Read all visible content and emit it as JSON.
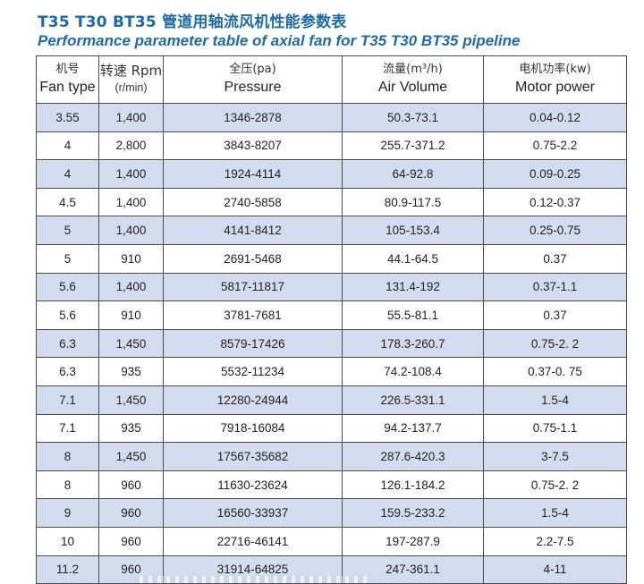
{
  "title_cn": "T35 T30 BT35 管道用轴流风机性能参数表",
  "title_en": "Performance parameter table of axial fan for T35 T30 BT35 pipeline",
  "headers": [
    {
      "cn": "机号",
      "en": "Fan type",
      "sub": ""
    },
    {
      "cn": "转速 Rpm",
      "en": "",
      "sub": "(r/min)"
    },
    {
      "cn": "全压(pa)",
      "en": "Pressure",
      "sub": ""
    },
    {
      "cn": "流量(m³/h)",
      "en": "Air Volume",
      "sub": ""
    },
    {
      "cn": "电机功率(kw)",
      "en": "Motor power",
      "sub": ""
    }
  ],
  "rows": [
    {
      "fan": "3.55",
      "rpm": "1,400",
      "pressure": "1346-2878",
      "volume": "50.3-73.1",
      "power": "0.04-0.12"
    },
    {
      "fan": "4",
      "rpm": "2,800",
      "pressure": "3843-8207",
      "volume": "255.7-371.2",
      "power": "0.75-2.2"
    },
    {
      "fan": "4",
      "rpm": "1,400",
      "pressure": "1924-4114",
      "volume": "64-92.8",
      "power": "0.09-0.25"
    },
    {
      "fan": "4.5",
      "rpm": "1,400",
      "pressure": "2740-5858",
      "volume": "80.9-117.5",
      "power": "0.12-0.37"
    },
    {
      "fan": "5",
      "rpm": "1,400",
      "pressure": "4141-8412",
      "volume": "105-153.4",
      "power": "0.25-0.75"
    },
    {
      "fan": "5",
      "rpm": "910",
      "pressure": "2691-5468",
      "volume": "44.1-64.5",
      "power": "0.37"
    },
    {
      "fan": "5.6",
      "rpm": "1,400",
      "pressure": "5817-11817",
      "volume": "131.4-192",
      "power": "0.37-1.1"
    },
    {
      "fan": "5.6",
      "rpm": "910",
      "pressure": "3781-7681",
      "volume": "55.5-81.1",
      "power": "0.37"
    },
    {
      "fan": "6.3",
      "rpm": "1,450",
      "pressure": "8579-17426",
      "volume": "178.3-260.7",
      "power": "0.75-2. 2"
    },
    {
      "fan": "6.3",
      "rpm": "935",
      "pressure": "5532-11234",
      "volume": "74.2-108.4",
      "power": "0.37-0. 75"
    },
    {
      "fan": "7.1",
      "rpm": "1,450",
      "pressure": "12280-24944",
      "volume": "226.5-331.1",
      "power": "1.5-4"
    },
    {
      "fan": "7.1",
      "rpm": "935",
      "pressure": "7918-16084",
      "volume": "94.2-137.7",
      "power": "0.75-1.1"
    },
    {
      "fan": "8",
      "rpm": "1,450",
      "pressure": "17567-35682",
      "volume": "287.6-420.3",
      "power": "3-7.5"
    },
    {
      "fan": "8",
      "rpm": "960",
      "pressure": "11630-23624",
      "volume": "126.1-184.2",
      "power": "0.75-2. 2"
    },
    {
      "fan": "9",
      "rpm": "960",
      "pressure": "16560-33937",
      "volume": "159.5-233.2",
      "power": "1.5-4"
    },
    {
      "fan": "10",
      "rpm": "960",
      "pressure": "22716-46141",
      "volume": "197-287.9",
      "power": "2.2-7.5"
    },
    {
      "fan": "11.2",
      "rpm": "960",
      "pressure": "31914-64825",
      "volume": "247-361.1",
      "power": "4-11"
    }
  ],
  "colors": {
    "title": "#1f6aa5",
    "shade": "#d3dcef",
    "border": "#4a4a4a"
  }
}
